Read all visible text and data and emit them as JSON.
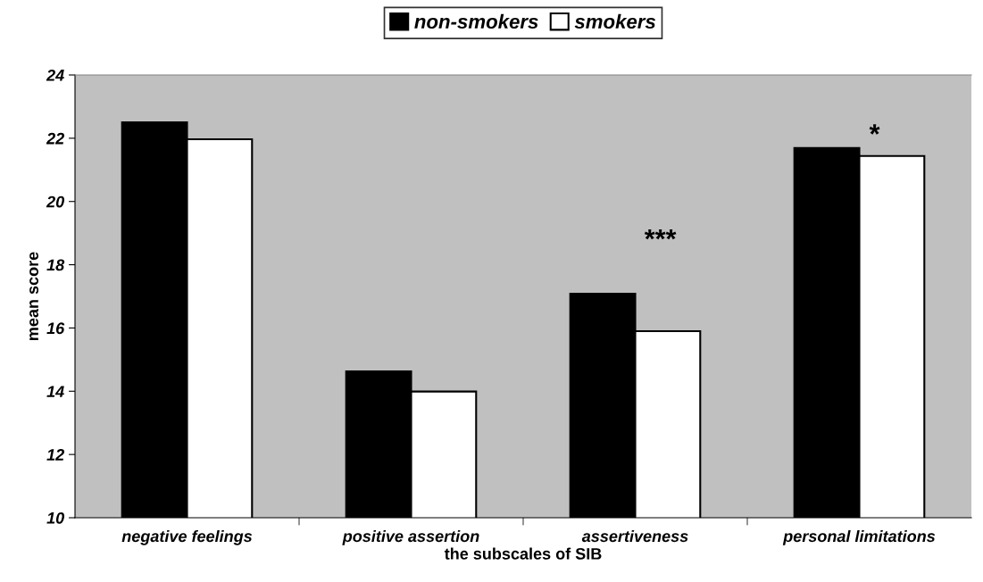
{
  "chart_data": {
    "type": "bar",
    "xlabel": "the subscales of SIB",
    "ylabel": "mean score",
    "categories": [
      "negative feelings",
      "positive assertion",
      "assertiveness",
      "personal limitations"
    ],
    "series": [
      {
        "name": "non-smokers",
        "color": "#000000",
        "values": [
          22.5,
          14.63,
          17.08,
          21.69
        ]
      },
      {
        "name": "smokers",
        "color": "#ffffff",
        "values": [
          21.97,
          13.99,
          15.9,
          21.44
        ]
      }
    ],
    "ylim": [
      10,
      24
    ],
    "yticks": [
      10,
      12,
      14,
      16,
      18,
      20,
      22,
      24
    ],
    "grid": false,
    "legend": "top",
    "annotations": [
      "***",
      "*"
    ]
  }
}
